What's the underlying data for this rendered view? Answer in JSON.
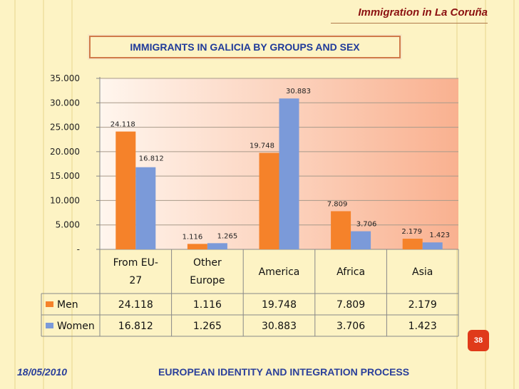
{
  "slide": {
    "title": "Immigration in La Coruña",
    "page_number": "38",
    "date": "18/05/2010",
    "footer": "EUROPEAN IDENTITY AND INTEGRATION PROCESS"
  },
  "colors": {
    "men": "#f5822a",
    "women": "#7b9ad9",
    "accent": "#e03a1a",
    "footer_text": "#2a3f9a"
  },
  "chart_data": {
    "type": "bar",
    "title": "IMMIGRANTS IN GALICIA BY GROUPS AND SEX",
    "categories": [
      [
        "From EU-",
        "27"
      ],
      [
        "Other",
        "Europe"
      ],
      [
        "America"
      ],
      [
        "Africa"
      ],
      [
        "Asia"
      ]
    ],
    "series": [
      {
        "name": "Men",
        "values": [
          24118,
          1116,
          19748,
          7809,
          2179
        ],
        "labels": [
          "24.118",
          "1.116",
          "19.748",
          "7.809",
          "2.179"
        ]
      },
      {
        "name": "Women",
        "values": [
          16812,
          1265,
          30883,
          3706,
          1423
        ],
        "labels": [
          "16.812",
          "1.265",
          "30.883",
          "3.706",
          "1.423"
        ]
      }
    ],
    "y_ticks": [
      "-",
      "5.000",
      "10.000",
      "15.000",
      "20.000",
      "25.000",
      "30.000",
      "35.000"
    ],
    "ylim": [
      0,
      35000
    ],
    "grid": true,
    "data_table": true,
    "legend": "in data table"
  }
}
